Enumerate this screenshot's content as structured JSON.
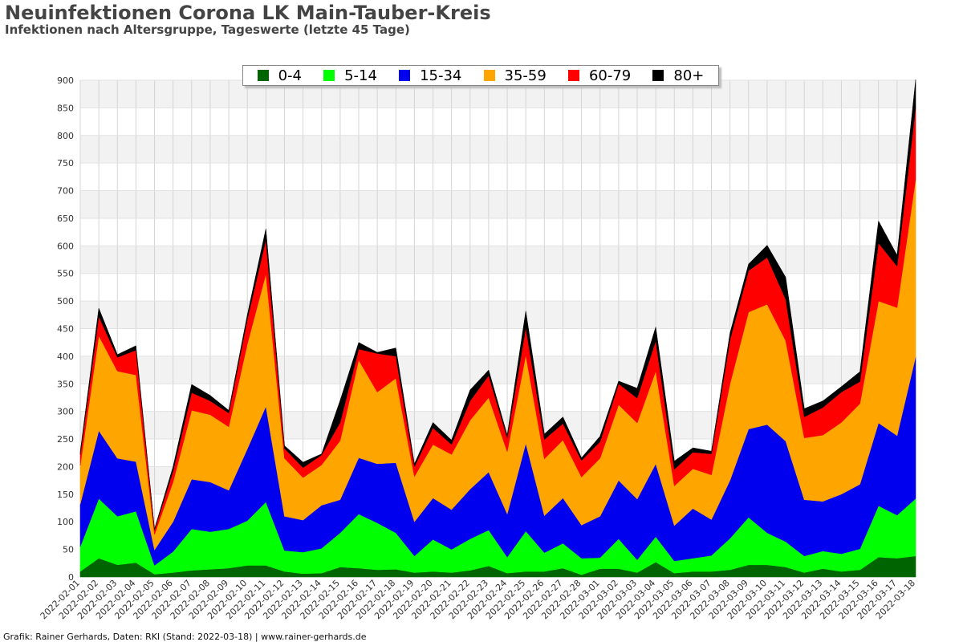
{
  "header": {
    "title": "Neuinfektionen Corona LK Main-Tauber-Kreis",
    "subtitle": "Infektionen nach Altersgruppe, Tageswerte (letzte 45 Tage)"
  },
  "footer": {
    "credit": "Grafik: Rainer Gerhards, Daten: RKI (Stand: 2022-03-18) | www.rainer-gerhards.de"
  },
  "chart_data": {
    "type": "area",
    "stacked": true,
    "title": "Neuinfektionen Corona LK Main-Tauber-Kreis",
    "subtitle": "Infektionen nach Altersgruppe, Tageswerte (letzte 45 Tage)",
    "xlabel": "",
    "ylabel": "",
    "ylim": [
      0,
      900
    ],
    "yticks": [
      0,
      50,
      100,
      150,
      200,
      250,
      300,
      350,
      400,
      450,
      500,
      550,
      600,
      650,
      700,
      750,
      800,
      850,
      900
    ],
    "grid": true,
    "legend_position": "top-center",
    "categories": [
      "2022-02-01",
      "2022-02-02",
      "2022-02-03",
      "2022-02-04",
      "2022-02-05",
      "2022-02-06",
      "2022-02-07",
      "2022-02-08",
      "2022-02-09",
      "2022-02-10",
      "2022-02-11",
      "2022-02-12",
      "2022-02-13",
      "2022-02-14",
      "2022-02-15",
      "2022-02-16",
      "2022-02-17",
      "2022-02-18",
      "2022-02-19",
      "2022-02-20",
      "2022-02-21",
      "2022-02-22",
      "2022-02-23",
      "2022-02-24",
      "2022-02-25",
      "2022-02-26",
      "2022-02-27",
      "2022-02-28",
      "2022-03-01",
      "2022-03-02",
      "2022-03-03",
      "2022-03-04",
      "2022-03-05",
      "2022-03-06",
      "2022-03-07",
      "2022-03-08",
      "2022-03-09",
      "2022-03-10",
      "2022-03-11",
      "2022-03-12",
      "2022-03-13",
      "2022-03-14",
      "2022-03-15",
      "2022-03-16",
      "2022-03-17",
      "2022-03-18"
    ],
    "series": [
      {
        "name": "0-4",
        "color": "#006400",
        "values": [
          10,
          34,
          22,
          26,
          5,
          8,
          12,
          14,
          16,
          21,
          21,
          10,
          6,
          7,
          18,
          16,
          13,
          14,
          8,
          10,
          8,
          12,
          20,
          7,
          10,
          10,
          16,
          4,
          15,
          15,
          8,
          27,
          7,
          10,
          10,
          13,
          22,
          22,
          18,
          8,
          15,
          10,
          13,
          36,
          34,
          38
        ]
      },
      {
        "name": "5-14",
        "color": "#00FF00",
        "values": [
          45,
          108,
          88,
          93,
          16,
          38,
          75,
          68,
          71,
          81,
          115,
          38,
          39,
          45,
          62,
          98,
          85,
          66,
          30,
          58,
          42,
          57,
          65,
          29,
          73,
          34,
          45,
          30,
          20,
          54,
          23,
          46,
          22,
          24,
          29,
          57,
          86,
          58,
          46,
          30,
          32,
          32,
          38,
          93,
          78,
          104
        ]
      },
      {
        "name": "15-34",
        "color": "#0000EE",
        "values": [
          77,
          123,
          105,
          90,
          28,
          54,
          90,
          90,
          70,
          130,
          173,
          62,
          58,
          78,
          60,
          102,
          107,
          127,
          62,
          75,
          72,
          90,
          105,
          78,
          159,
          67,
          82,
          60,
          75,
          106,
          110,
          132,
          64,
          90,
          65,
          105,
          160,
          196,
          182,
          102,
          90,
          108,
          117,
          150,
          144,
          257
        ]
      },
      {
        "name": "35-59",
        "color": "#FFA500",
        "values": [
          70,
          172,
          158,
          157,
          28,
          72,
          125,
          122,
          115,
          190,
          240,
          105,
          77,
          73,
          107,
          177,
          130,
          153,
          82,
          97,
          100,
          125,
          135,
          113,
          160,
          103,
          105,
          87,
          105,
          137,
          138,
          168,
          72,
          72,
          81,
          175,
          212,
          218,
          182,
          112,
          120,
          130,
          146,
          221,
          232,
          322
        ]
      },
      {
        "name": "60-79",
        "color": "#FF0000",
        "values": [
          20,
          35,
          25,
          45,
          8,
          20,
          32,
          25,
          25,
          45,
          62,
          18,
          18,
          18,
          33,
          20,
          70,
          40,
          18,
          30,
          18,
          35,
          40,
          25,
          50,
          35,
          30,
          30,
          30,
          38,
          45,
          55,
          30,
          30,
          38,
          80,
          75,
          85,
          75,
          38,
          50,
          55,
          40,
          105,
          75,
          130
        ]
      },
      {
        "name": "80+",
        "color": "#000000",
        "values": [
          5,
          15,
          5,
          8,
          2,
          8,
          15,
          10,
          5,
          8,
          20,
          5,
          10,
          2,
          40,
          12,
          2,
          15,
          5,
          10,
          8,
          20,
          10,
          5,
          30,
          10,
          12,
          5,
          10,
          5,
          18,
          25,
          15,
          8,
          5,
          12,
          12,
          22,
          40,
          15,
          12,
          10,
          18,
          40,
          20,
          50
        ]
      }
    ]
  }
}
